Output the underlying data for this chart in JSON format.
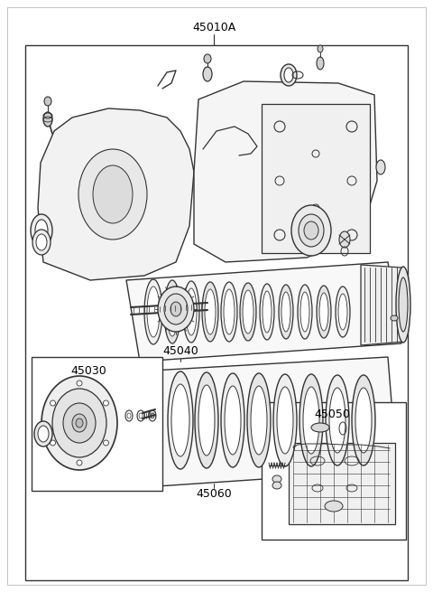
{
  "background_color": "#ffffff",
  "border_color": "#333333",
  "line_color": "#333333",
  "text_color": "#000000",
  "label_45010A": "45010A",
  "label_45040": "45040",
  "label_45030": "45030",
  "label_45050": "45050",
  "label_45060": "45060",
  "fig_width": 4.8,
  "fig_height": 6.55,
  "dpi": 100
}
